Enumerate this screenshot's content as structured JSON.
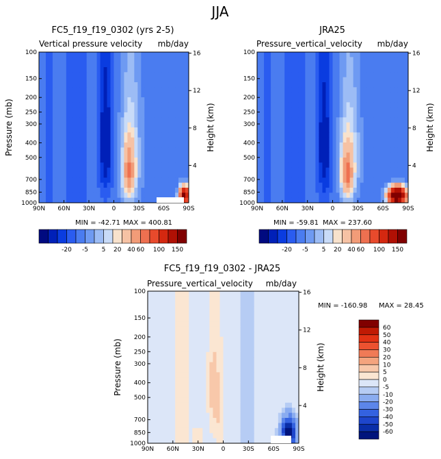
{
  "suptitle": "JJA",
  "chart_data": [
    {
      "type": "heatmap",
      "title": "FC5_f19_f19_0302 (yrs 2-5)",
      "subtitle": "Vertical pressure velocity",
      "units": "mb/day",
      "xlabel": "",
      "ylabel": "Pressure (mb)",
      "y2label": "Height (km)",
      "x_ticks": [
        "90N",
        "60N",
        "30N",
        "0",
        "30S",
        "60S",
        "90S"
      ],
      "y_ticks": [
        "100",
        "150",
        "200",
        "250",
        "300",
        "400",
        "500",
        "700",
        "850",
        "1000"
      ],
      "y2_ticks": [
        "16",
        "12",
        "8",
        "4"
      ],
      "min_label": "MIN = -42.71",
      "max_label": "MAX = 400.81",
      "min": -42.71,
      "max": 400.81,
      "colorbar_labels": [
        "-20",
        "-5",
        "5",
        "20",
        "40",
        "60",
        "100",
        "150"
      ],
      "colorbar_orientation": "horizontal",
      "palette": "blue-white-red"
    },
    {
      "type": "heatmap",
      "title": "JRA25",
      "subtitle": "Pressure_vertical_velocity",
      "units": "mb/day",
      "xlabel": "",
      "ylabel": "",
      "y2label": "Height (km)",
      "x_ticks": [
        "90N",
        "60N",
        "30N",
        "0",
        "30S",
        "60S",
        "90S"
      ],
      "y_ticks": [
        "100",
        "150",
        "200",
        "250",
        "300",
        "400",
        "500",
        "700",
        "850",
        "1000"
      ],
      "y2_ticks": [
        "16",
        "12",
        "8",
        "4"
      ],
      "min_label": "MIN = -59.81",
      "max_label": "MAX = 237.60",
      "min": -59.81,
      "max": 237.6,
      "colorbar_labels": [
        "-20",
        "-5",
        "5",
        "20",
        "40",
        "60",
        "100",
        "150"
      ],
      "colorbar_orientation": "horizontal",
      "palette": "blue-white-red"
    },
    {
      "type": "heatmap",
      "title": "FC5_f19_f19_0302 - JRA25",
      "subtitle": "Pressure_vertical_velocity",
      "units": "mb/day",
      "xlabel": "",
      "ylabel": "Pressure (mb)",
      "y2label": "Height (km)",
      "x_ticks": [
        "90N",
        "60N",
        "30N",
        "0",
        "30S",
        "60S",
        "90S"
      ],
      "y_ticks": [
        "100",
        "150",
        "200",
        "250",
        "300",
        "400",
        "500",
        "700",
        "850",
        "1000"
      ],
      "y2_ticks": [
        "16",
        "12",
        "8",
        "4"
      ],
      "min_label": "MIN = -160.98",
      "max_label": "MAX =  28.45",
      "min": -160.98,
      "max": 28.45,
      "colorbar_labels": [
        "60",
        "50",
        "40",
        "30",
        "20",
        "10",
        "5",
        "0",
        "-5",
        "-10",
        "-20",
        "-30",
        "-40",
        "-50",
        "-60"
      ],
      "colorbar_orientation": "vertical",
      "palette": "difference"
    }
  ],
  "colors": {
    "seq": [
      "#000a80",
      "#0020b8",
      "#0a3ce0",
      "#2a5cf0",
      "#4a7cf0",
      "#6e9af2",
      "#9cbcf5",
      "#c8dbf8",
      "#f8e2cc",
      "#f6c2a4",
      "#f29c78",
      "#ee7050",
      "#e84a2c",
      "#d42810",
      "#b01004",
      "#800000"
    ],
    "diff": [
      "#800000",
      "#c01a04",
      "#e23214",
      "#ec5230",
      "#f07a56",
      "#f4a47e",
      "#f8c8aa",
      "#fbe6d2",
      "#dce6f8",
      "#b6ccf4",
      "#8aacf0",
      "#5c86ea",
      "#3462e0",
      "#1e46cc",
      "#0a2ea8",
      "#00147c"
    ]
  }
}
